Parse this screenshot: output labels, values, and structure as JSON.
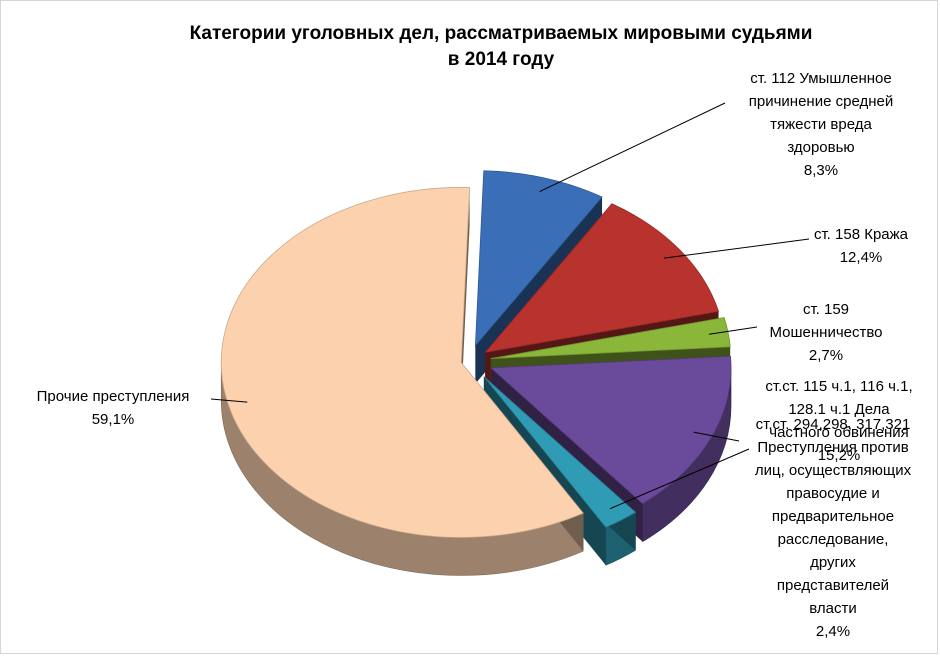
{
  "title": {
    "line1": "Категории уголовных дел, рассматриваемых мировыми судьями",
    "line2": "в 2014 году"
  },
  "chart_data": {
    "type": "pie",
    "style": "3d-exploded",
    "title": "Категории уголовных дел, рассматриваемых мировыми судьями в 2014 году",
    "slices": [
      {
        "name": "ст. 112 Умышленное причинение средней тяжести вреда здоровью",
        "label_lines": [
          "ст. 112 Умышленное",
          "причинение средней",
          "тяжести вреда",
          "здоровью"
        ],
        "percent_label": "8,3%",
        "value": 8.3,
        "color": "#3a6fb8"
      },
      {
        "name": "ст. 158 Кража",
        "label_lines": [
          "ст. 158 Кража"
        ],
        "percent_label": "12,4%",
        "value": 12.4,
        "color": "#b8322e"
      },
      {
        "name": "ст. 159 Мошенничество",
        "label_lines": [
          "ст. 159",
          "Мошенничество"
        ],
        "percent_label": "2,7%",
        "value": 2.7,
        "color": "#8ab63a"
      },
      {
        "name": "ст.ст. 115 ч.1, 116 ч.1, 128.1 ч.1 Дела частного обвинения",
        "label_lines": [
          "ст.ст. 115 ч.1, 116 ч.1,",
          "128.1 ч.1 Дела",
          "частного обвинения"
        ],
        "percent_label": "15,2%",
        "value": 15.2,
        "color": "#6a4a9a"
      },
      {
        "name": "ст.ст. 294,298, 317,321 Преступления против лиц, осуществляющих правосудие и предварительное расследование, других представителей власти",
        "label_lines": [
          "ст.ст. 294,298, 317,321",
          "Преступления против",
          "лиц, осуществляющих",
          "правосудие и",
          "предварительное",
          "расследование,",
          "других",
          "представителей",
          "власти"
        ],
        "percent_label": "2,4%",
        "value": 2.4,
        "color": "#2f9bb5"
      },
      {
        "name": "Прочие преступления",
        "label_lines": [
          "Прочие преступления"
        ],
        "percent_label": "59,1%",
        "value": 59.1,
        "color": "#fcd2ae"
      }
    ]
  }
}
